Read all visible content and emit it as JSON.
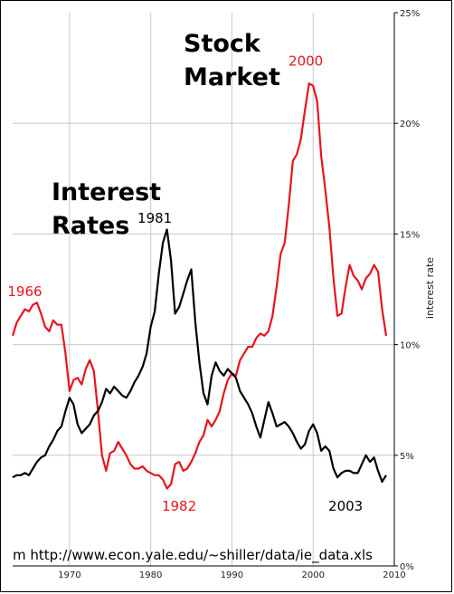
{
  "chart_data": {
    "type": "line",
    "xlim": [
      1963,
      2010
    ],
    "ylim": [
      0,
      25
    ],
    "x_ticks": [
      1970,
      1980,
      1990,
      2000,
      2010
    ],
    "y_ticks": [
      0,
      5,
      10,
      15,
      20,
      25
    ],
    "y_tick_labels": [
      "0%",
      "5%",
      "10%",
      "15%",
      "20%",
      "25%"
    ],
    "ylabel": "interest rate",
    "grid": true,
    "source_text": "m http://www.econ.yale.edu/~shiller/data/ie_data.xls",
    "labels": {
      "stock_market": [
        "Stock",
        "Market"
      ],
      "interest_rates": [
        "Interest",
        "Rates"
      ]
    },
    "series": [
      {
        "color": "#e8141d",
        "values": [
          [
            1963.0,
            10.4
          ],
          [
            1963.5,
            11.0
          ],
          [
            1964.0,
            11.3
          ],
          [
            1964.5,
            11.6
          ],
          [
            1965.0,
            11.5
          ],
          [
            1965.5,
            11.8
          ],
          [
            1966.0,
            11.9
          ],
          [
            1966.5,
            11.4
          ],
          [
            1967.0,
            10.8
          ],
          [
            1967.5,
            10.6
          ],
          [
            1968.0,
            11.1
          ],
          [
            1968.5,
            10.9
          ],
          [
            1969.0,
            10.9
          ],
          [
            1969.5,
            9.6
          ],
          [
            1970.0,
            7.9
          ],
          [
            1970.5,
            8.4
          ],
          [
            1971.0,
            8.5
          ],
          [
            1971.5,
            8.2
          ],
          [
            1972.0,
            8.9
          ],
          [
            1972.5,
            9.3
          ],
          [
            1973.0,
            8.8
          ],
          [
            1973.5,
            7.0
          ],
          [
            1974.0,
            5.0
          ],
          [
            1974.5,
            4.3
          ],
          [
            1975.0,
            5.1
          ],
          [
            1975.5,
            5.2
          ],
          [
            1976.0,
            5.6
          ],
          [
            1976.5,
            5.3
          ],
          [
            1977.0,
            5.0
          ],
          [
            1977.5,
            4.6
          ],
          [
            1978.0,
            4.4
          ],
          [
            1978.5,
            4.4
          ],
          [
            1979.0,
            4.5
          ],
          [
            1979.5,
            4.3
          ],
          [
            1980.0,
            4.2
          ],
          [
            1980.5,
            4.1
          ],
          [
            1981.0,
            4.1
          ],
          [
            1981.5,
            3.9
          ],
          [
            1982.0,
            3.5
          ],
          [
            1982.5,
            3.7
          ],
          [
            1983.0,
            4.6
          ],
          [
            1983.5,
            4.7
          ],
          [
            1984.0,
            4.3
          ],
          [
            1984.5,
            4.4
          ],
          [
            1985.0,
            4.7
          ],
          [
            1985.5,
            5.1
          ],
          [
            1986.0,
            5.6
          ],
          [
            1986.5,
            5.9
          ],
          [
            1987.0,
            6.6
          ],
          [
            1987.5,
            6.3
          ],
          [
            1988.0,
            6.6
          ],
          [
            1988.5,
            7.0
          ],
          [
            1989.0,
            7.8
          ],
          [
            1989.5,
            8.4
          ],
          [
            1990.0,
            8.7
          ],
          [
            1990.5,
            8.6
          ],
          [
            1991.0,
            9.3
          ],
          [
            1991.5,
            9.6
          ],
          [
            1992.0,
            9.9
          ],
          [
            1992.5,
            9.9
          ],
          [
            1993.0,
            10.3
          ],
          [
            1993.5,
            10.5
          ],
          [
            1994.0,
            10.4
          ],
          [
            1994.5,
            10.6
          ],
          [
            1995.0,
            11.3
          ],
          [
            1995.5,
            12.6
          ],
          [
            1996.0,
            14.1
          ],
          [
            1996.5,
            14.6
          ],
          [
            1997.0,
            16.3
          ],
          [
            1997.5,
            18.3
          ],
          [
            1998.0,
            18.6
          ],
          [
            1998.5,
            19.3
          ],
          [
            1999.0,
            20.6
          ],
          [
            1999.5,
            21.8
          ],
          [
            2000.0,
            21.7
          ],
          [
            2000.5,
            21.0
          ],
          [
            2001.0,
            18.5
          ],
          [
            2001.5,
            17.0
          ],
          [
            2002.0,
            15.3
          ],
          [
            2002.5,
            13.0
          ],
          [
            2003.0,
            11.3
          ],
          [
            2003.5,
            11.4
          ],
          [
            2004.0,
            12.6
          ],
          [
            2004.5,
            13.6
          ],
          [
            2005.0,
            13.1
          ],
          [
            2005.5,
            12.9
          ],
          [
            2006.0,
            12.5
          ],
          [
            2006.5,
            13.0
          ],
          [
            2007.0,
            13.2
          ],
          [
            2007.5,
            13.6
          ],
          [
            2008.0,
            13.3
          ],
          [
            2008.5,
            11.6
          ],
          [
            2009.0,
            10.4
          ]
        ]
      },
      {
        "color": "#000000",
        "values": [
          [
            1963.0,
            4.0
          ],
          [
            1963.5,
            4.1
          ],
          [
            1964.0,
            4.1
          ],
          [
            1964.5,
            4.2
          ],
          [
            1965.0,
            4.1
          ],
          [
            1965.5,
            4.4
          ],
          [
            1966.0,
            4.7
          ],
          [
            1966.5,
            4.9
          ],
          [
            1967.0,
            5.0
          ],
          [
            1967.5,
            5.4
          ],
          [
            1968.0,
            5.7
          ],
          [
            1968.5,
            6.1
          ],
          [
            1969.0,
            6.3
          ],
          [
            1969.5,
            7.0
          ],
          [
            1970.0,
            7.6
          ],
          [
            1970.5,
            7.3
          ],
          [
            1971.0,
            6.4
          ],
          [
            1971.5,
            6.0
          ],
          [
            1972.0,
            6.2
          ],
          [
            1972.5,
            6.4
          ],
          [
            1973.0,
            6.8
          ],
          [
            1973.5,
            7.0
          ],
          [
            1974.0,
            7.4
          ],
          [
            1974.5,
            8.0
          ],
          [
            1975.0,
            7.8
          ],
          [
            1975.5,
            8.1
          ],
          [
            1976.0,
            7.9
          ],
          [
            1976.5,
            7.7
          ],
          [
            1977.0,
            7.6
          ],
          [
            1977.5,
            7.9
          ],
          [
            1978.0,
            8.3
          ],
          [
            1978.5,
            8.6
          ],
          [
            1979.0,
            9.0
          ],
          [
            1979.5,
            9.6
          ],
          [
            1980.0,
            10.8
          ],
          [
            1980.5,
            11.5
          ],
          [
            1981.0,
            13.2
          ],
          [
            1981.5,
            14.6
          ],
          [
            1982.0,
            15.2
          ],
          [
            1982.5,
            13.8
          ],
          [
            1983.0,
            11.4
          ],
          [
            1983.5,
            11.7
          ],
          [
            1984.0,
            12.3
          ],
          [
            1984.5,
            12.9
          ],
          [
            1985.0,
            13.4
          ],
          [
            1985.5,
            11.0
          ],
          [
            1986.0,
            9.2
          ],
          [
            1986.5,
            7.8
          ],
          [
            1987.0,
            7.3
          ],
          [
            1987.5,
            8.6
          ],
          [
            1988.0,
            9.2
          ],
          [
            1988.5,
            8.8
          ],
          [
            1989.0,
            8.6
          ],
          [
            1989.5,
            8.9
          ],
          [
            1990.0,
            8.7
          ],
          [
            1990.5,
            8.5
          ],
          [
            1991.0,
            7.9
          ],
          [
            1991.5,
            7.6
          ],
          [
            1992.0,
            7.3
          ],
          [
            1992.5,
            6.9
          ],
          [
            1993.0,
            6.3
          ],
          [
            1993.5,
            5.8
          ],
          [
            1994.0,
            6.6
          ],
          [
            1994.5,
            7.4
          ],
          [
            1995.0,
            6.9
          ],
          [
            1995.5,
            6.3
          ],
          [
            1996.0,
            6.4
          ],
          [
            1996.5,
            6.5
          ],
          [
            1997.0,
            6.3
          ],
          [
            1997.5,
            6.0
          ],
          [
            1998.0,
            5.6
          ],
          [
            1998.5,
            5.3
          ],
          [
            1999.0,
            5.5
          ],
          [
            1999.5,
            6.1
          ],
          [
            2000.0,
            6.4
          ],
          [
            2000.5,
            6.0
          ],
          [
            2001.0,
            5.2
          ],
          [
            2001.5,
            5.4
          ],
          [
            2002.0,
            5.2
          ],
          [
            2002.5,
            4.4
          ],
          [
            2003.0,
            4.0
          ],
          [
            2003.5,
            4.2
          ],
          [
            2004.0,
            4.3
          ],
          [
            2004.5,
            4.3
          ],
          [
            2005.0,
            4.2
          ],
          [
            2005.5,
            4.2
          ],
          [
            2006.0,
            4.6
          ],
          [
            2006.5,
            5.0
          ],
          [
            2007.0,
            4.7
          ],
          [
            2007.5,
            4.9
          ],
          [
            2008.0,
            4.3
          ],
          [
            2008.5,
            3.8
          ],
          [
            2009.0,
            4.1
          ]
        ]
      }
    ],
    "annotations": [
      {
        "text": "1966",
        "x": 1964.5,
        "y": 12.2,
        "color": "#e8141d"
      },
      {
        "text": "1982",
        "x": 1983.5,
        "y": 2.5,
        "color": "#e8141d"
      },
      {
        "text": "2000",
        "x": 1999.1,
        "y": 22.6,
        "color": "#e8141d"
      },
      {
        "text": "1981",
        "x": 1980.5,
        "y": 15.5,
        "color": "#000000"
      },
      {
        "text": "2003",
        "x": 2004.0,
        "y": 2.5,
        "color": "#000000"
      }
    ]
  }
}
